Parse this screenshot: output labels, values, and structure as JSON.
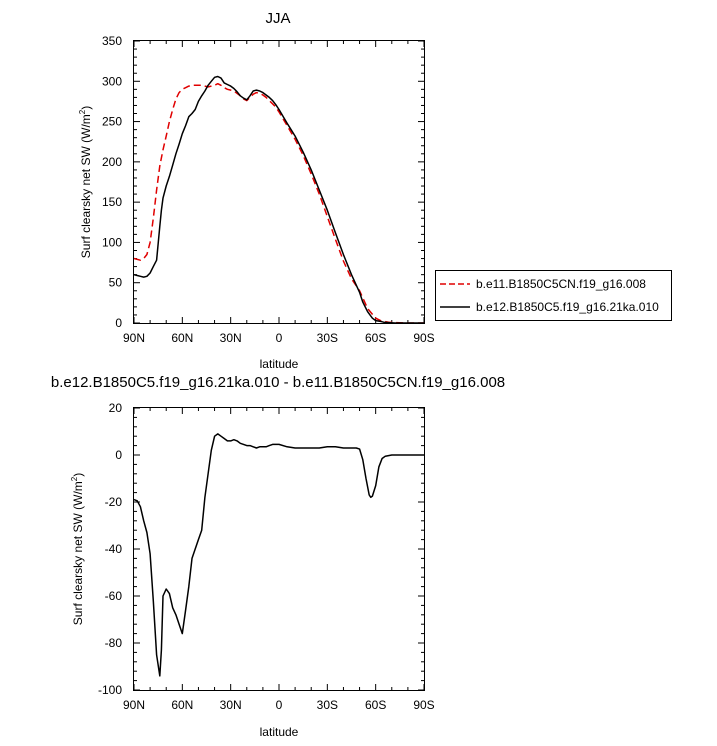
{
  "chart_data": [
    {
      "type": "line",
      "title": "JJA",
      "xlabel": "latitude",
      "ylabel": "Surf clearsky net SW (W/m",
      "ylabel_sup": "2",
      "ylabel_close": ")",
      "xlim": [
        90,
        -90
      ],
      "ylim": [
        0,
        350
      ],
      "xticks": [
        90,
        60,
        30,
        0,
        -30,
        -60,
        -90
      ],
      "xtick_labels": [
        "90N",
        "60N",
        "30N",
        "0",
        "30S",
        "60S",
        "90S"
      ],
      "yticks": [
        0,
        50,
        100,
        150,
        200,
        250,
        300,
        350
      ],
      "ytick_labels": [
        "0",
        "50",
        "100",
        "150",
        "200",
        "250",
        "300",
        "350"
      ],
      "legend_position": "right",
      "series": [
        {
          "name": "b.e11.B1850C5CN.f19_g16.008",
          "color": "#e00000",
          "dash": "dashed",
          "x": [
            90,
            86,
            84,
            82,
            80,
            78,
            76,
            74,
            72,
            70,
            68,
            66,
            64,
            62,
            60,
            58,
            56,
            54,
            52,
            50,
            48,
            46,
            44,
            42,
            40,
            38,
            36,
            34,
            32,
            30,
            28,
            26,
            24,
            22,
            20,
            18,
            16,
            14,
            12,
            10,
            8,
            6,
            4,
            2,
            0,
            -5,
            -10,
            -15,
            -20,
            -25,
            -30,
            -35,
            -40,
            -45,
            -50,
            -55,
            -60,
            -63,
            -65,
            -68,
            -72,
            -80,
            -90
          ],
          "y": [
            80,
            78,
            80,
            85,
            100,
            130,
            165,
            195,
            215,
            232,
            250,
            265,
            278,
            286,
            290,
            292,
            294,
            295,
            295,
            295,
            295,
            294,
            293,
            294,
            295,
            297,
            295,
            292,
            290,
            289,
            288,
            285,
            282,
            278,
            276,
            280,
            284,
            286,
            285,
            283,
            280,
            276,
            272,
            268,
            262,
            245,
            228,
            208,
            185,
            160,
            132,
            104,
            77,
            55,
            40,
            18,
            6,
            3,
            2,
            1,
            0.5,
            0,
            0
          ]
        },
        {
          "name": "b.e12.B1850C5.f19_g16.21ka.010",
          "color": "#000000",
          "dash": "solid",
          "x": [
            90,
            88,
            86,
            84,
            82,
            80,
            78,
            76,
            74,
            73,
            72,
            70,
            68,
            66,
            64,
            62,
            60,
            58,
            56,
            54,
            52,
            50,
            48,
            46,
            44,
            42,
            40,
            38,
            36,
            34,
            32,
            30,
            28,
            26,
            24,
            22,
            20,
            18,
            16,
            14,
            12,
            10,
            8,
            6,
            4,
            2,
            0,
            -5,
            -10,
            -15,
            -20,
            -25,
            -30,
            -35,
            -40,
            -45,
            -50,
            -52,
            -55,
            -58,
            -60,
            -63,
            -65,
            -68,
            -72,
            -80,
            -90
          ],
          "y": [
            60,
            59,
            58,
            57,
            58,
            62,
            70,
            78,
            120,
            140,
            155,
            170,
            182,
            196,
            210,
            222,
            235,
            245,
            256,
            260,
            265,
            275,
            282,
            288,
            295,
            300,
            305,
            306,
            304,
            298,
            296,
            294,
            291,
            287,
            282,
            279,
            277,
            282,
            288,
            289,
            288,
            286,
            283,
            280,
            276,
            271,
            265,
            248,
            232,
            212,
            190,
            165,
            140,
            112,
            85,
            60,
            38,
            26,
            14,
            6,
            3,
            2,
            1,
            0.5,
            0,
            0,
            0
          ]
        }
      ]
    },
    {
      "type": "line",
      "title": "b.e12.B1850C5.f19_g16.21ka.010 - b.e11.B1850C5CN.f19_g16.008",
      "xlabel": "latitude",
      "ylabel": "Surf clearsky net SW (W/m",
      "ylabel_sup": "2",
      "ylabel_close": ")",
      "xlim": [
        90,
        -90
      ],
      "ylim": [
        -100,
        20
      ],
      "xticks": [
        90,
        60,
        30,
        0,
        -30,
        -60,
        -90
      ],
      "xtick_labels": [
        "90N",
        "60N",
        "30N",
        "0",
        "30S",
        "60S",
        "90S"
      ],
      "yticks": [
        -100,
        -80,
        -60,
        -40,
        -20,
        0,
        20
      ],
      "ytick_labels": [
        "-100",
        "-80",
        "-60",
        "-40",
        "-20",
        "0",
        "20"
      ],
      "series": [
        {
          "color": "#000000",
          "dash": "solid",
          "x": [
            90,
            88,
            86,
            84,
            82,
            80,
            78,
            76,
            74,
            73,
            72,
            70,
            68,
            66,
            64,
            62,
            60,
            58,
            56,
            54,
            52,
            50,
            48,
            46,
            44,
            42,
            40,
            38,
            36,
            34,
            32,
            30,
            28,
            26,
            24,
            22,
            20,
            18,
            16,
            14,
            12,
            10,
            8,
            6,
            4,
            2,
            0,
            -5,
            -10,
            -15,
            -20,
            -25,
            -30,
            -35,
            -40,
            -45,
            -48,
            -50,
            -52,
            -54,
            -56,
            -57,
            -58,
            -60,
            -62,
            -64,
            -66,
            -70,
            -75,
            -80,
            -90
          ],
          "y": [
            -19,
            -19.5,
            -22,
            -28,
            -33,
            -42,
            -62,
            -85,
            -94,
            -83,
            -60,
            -57,
            -59,
            -65,
            -68,
            -72,
            -76,
            -66,
            -56,
            -44,
            -40,
            -36,
            -32,
            -18,
            -8,
            2,
            8,
            9,
            8,
            7,
            6,
            6,
            6.5,
            6,
            5,
            4.5,
            4,
            4,
            3.5,
            3,
            3.5,
            3.5,
            3.5,
            4,
            4.5,
            4.5,
            4.5,
            3.5,
            3,
            3,
            3,
            3,
            3.5,
            3.5,
            3,
            3,
            3,
            2.5,
            -2,
            -10,
            -17,
            -18,
            -17.5,
            -13,
            -5,
            -1.5,
            -0.5,
            0,
            0,
            0,
            0
          ]
        }
      ]
    }
  ]
}
